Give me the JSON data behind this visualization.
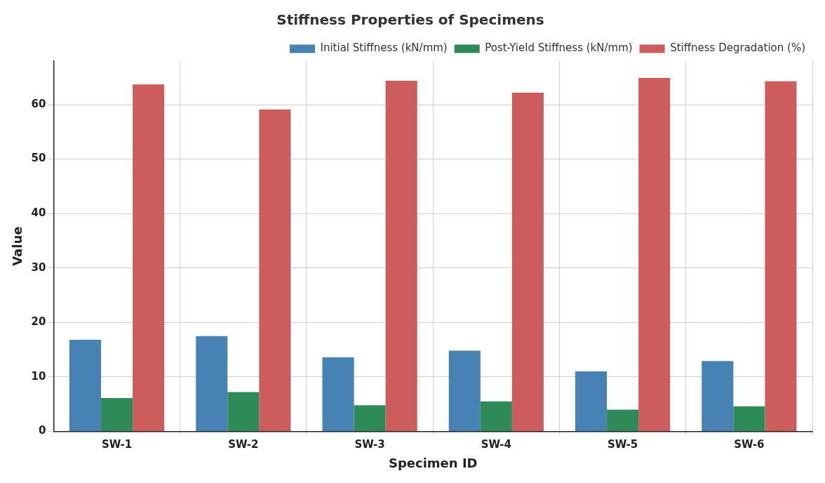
{
  "chart_data": {
    "type": "bar",
    "title": "Stiffness Properties of Specimens",
    "xlabel": "Specimen ID",
    "ylabel": "Value",
    "categories": [
      "SW-1",
      "SW-2",
      "SW-3",
      "SW-4",
      "SW-5",
      "SW-6"
    ],
    "series": [
      {
        "name": "Initial Stiffness (kN/mm)",
        "color": "#4682b4",
        "values": [
          16.8,
          17.5,
          13.6,
          14.8,
          11.0,
          12.9
        ]
      },
      {
        "name": "Post-Yield Stiffness (kN/mm)",
        "color": "#2e8b57",
        "values": [
          6.1,
          7.2,
          4.8,
          5.5,
          4.0,
          4.6
        ]
      },
      {
        "name": "Stiffness Degradation (%)",
        "color": "#cd5c5c",
        "values": [
          63.7,
          59.1,
          64.4,
          62.2,
          64.9,
          64.3
        ]
      }
    ],
    "ylim": [
      0,
      68
    ],
    "yticks": [
      0,
      10,
      20,
      30,
      40,
      50,
      60
    ],
    "grid": true,
    "legend": "top right"
  }
}
